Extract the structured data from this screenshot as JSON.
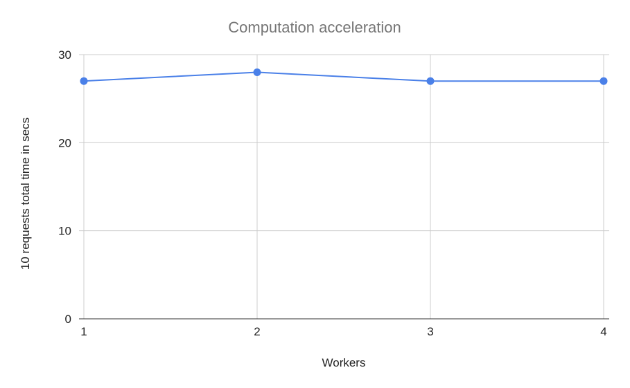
{
  "chart_data": {
    "type": "line",
    "title": "Computation acceleration",
    "xlabel": "Workers",
    "ylabel": "10 requests total time in secs",
    "categories": [
      "1",
      "2",
      "3",
      "4"
    ],
    "series": [
      {
        "values": [
          27,
          28,
          27,
          27
        ],
        "color": "#4a80e8"
      }
    ],
    "ylim": [
      0,
      30
    ],
    "yticks": [
      "0",
      "10",
      "20",
      "30"
    ],
    "grid": true,
    "legend": "none",
    "colors": {
      "title": "#757575",
      "text": "#222222",
      "grid": "#cccccc",
      "baseline": "#333333"
    }
  }
}
